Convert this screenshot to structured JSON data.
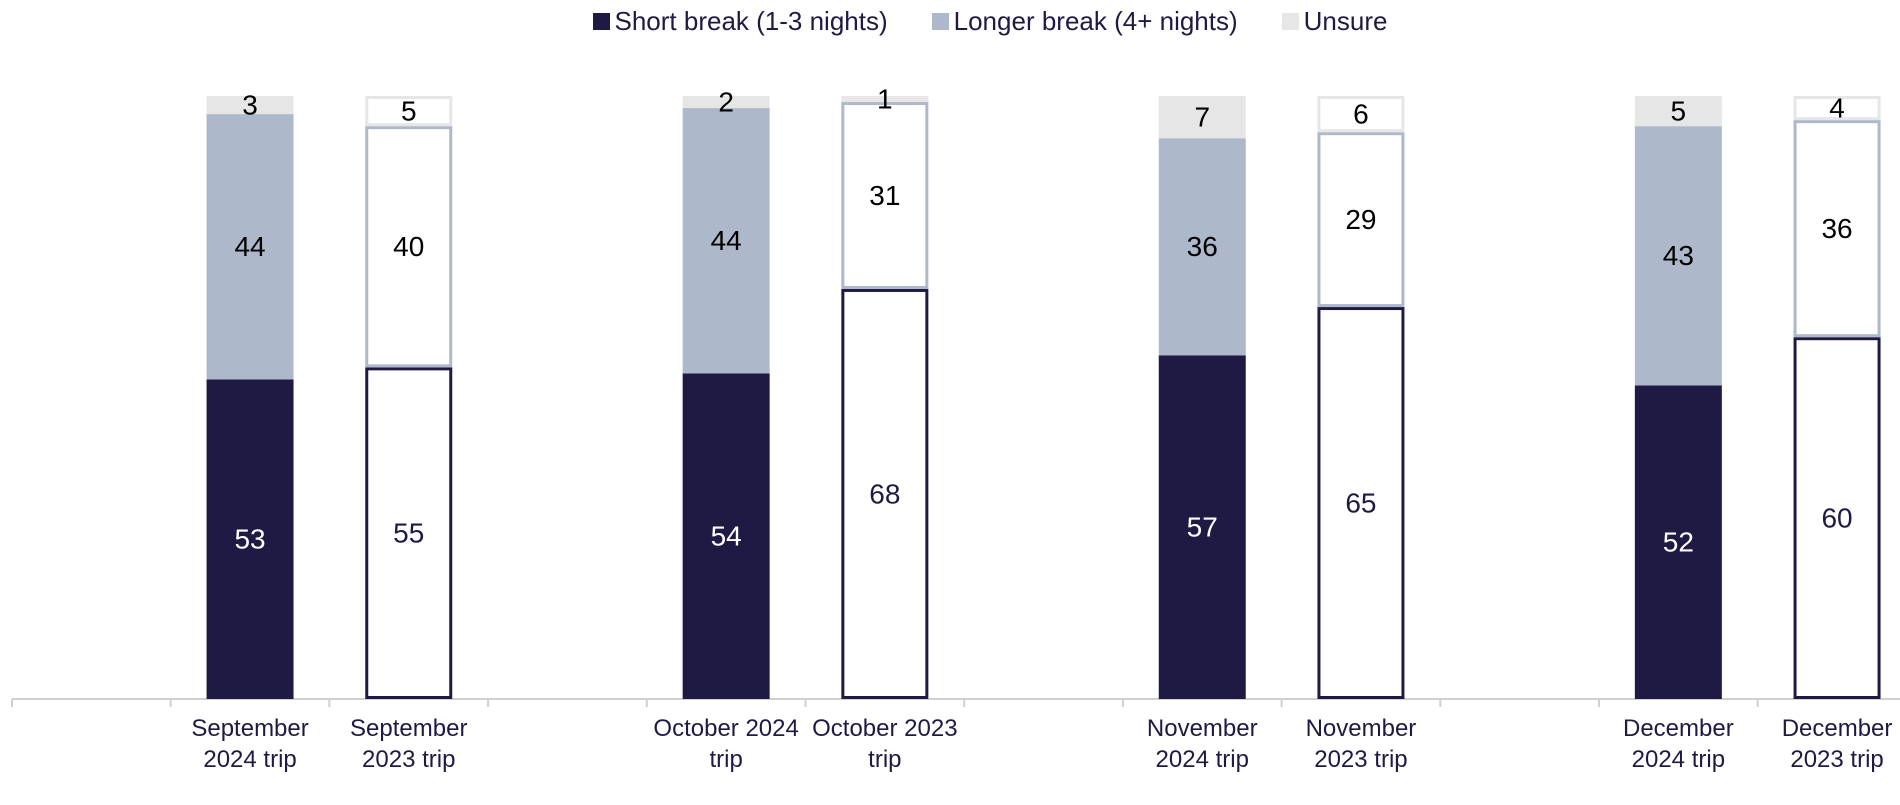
{
  "chart_data": {
    "type": "stacked_bar",
    "categories": [
      null,
      "September 2024 trip",
      "September 2023 trip",
      null,
      "October 2024 trip",
      "October 2023 trip",
      null,
      "November 2024 trip",
      "November 2023 trip",
      null,
      "December 2024 trip",
      "December 2023 trip"
    ],
    "hollow": [
      false,
      false,
      true,
      false,
      false,
      true,
      false,
      false,
      true,
      false,
      false,
      true
    ],
    "series": [
      {
        "name": "Short break (1-3 nights)",
        "color": "#1f1a44",
        "values": [
          null,
          53,
          55,
          null,
          54,
          68,
          null,
          57,
          65,
          null,
          52,
          60
        ]
      },
      {
        "name": "Longer break (4+ nights)",
        "color": "#aeb8cb",
        "values": [
          null,
          44,
          40,
          null,
          44,
          31,
          null,
          36,
          29,
          null,
          43,
          36
        ]
      },
      {
        "name": "Unsure",
        "color": "#e6e6e6",
        "values": [
          null,
          3,
          5,
          null,
          2,
          1,
          null,
          7,
          6,
          null,
          5,
          4
        ]
      }
    ],
    "ylim": [
      0,
      100
    ],
    "legend": "top"
  }
}
